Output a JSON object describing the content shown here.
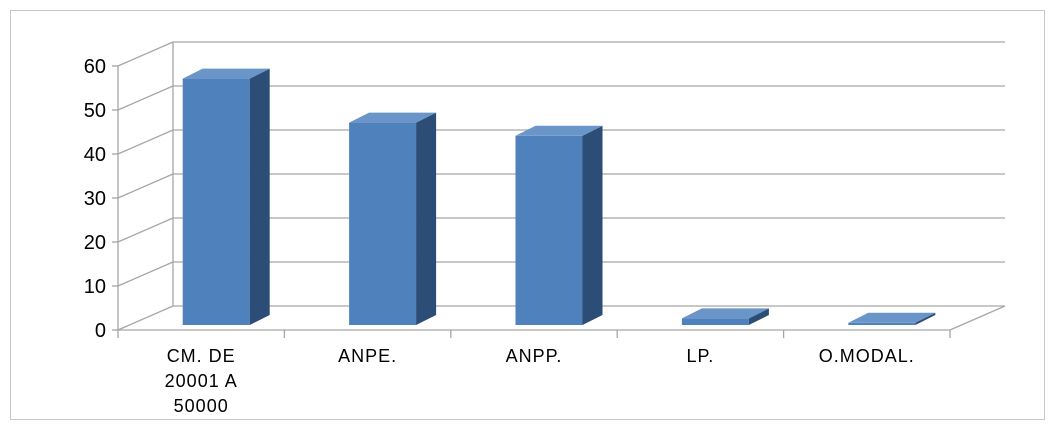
{
  "chart_data": {
    "type": "bar",
    "style": "3d-column",
    "categories": [
      [
        "CM. DE",
        "20001 A",
        "50000"
      ],
      [
        "ANPE."
      ],
      [
        "ANPP."
      ],
      [
        "LP."
      ],
      [
        "O.MODAL."
      ]
    ],
    "values": [
      56,
      46,
      43,
      1.5,
      0.5
    ],
    "ylim": [
      0,
      60
    ],
    "yticks": [
      "0",
      "10",
      "20",
      "30",
      "40",
      "50",
      "60"
    ],
    "grid": true,
    "legend": "none",
    "colors": {
      "bar_front": "#4f81bd",
      "bar_side": "#2c4d75",
      "bar_top": "#6a95c9",
      "grid": "#a6a6a6"
    }
  }
}
